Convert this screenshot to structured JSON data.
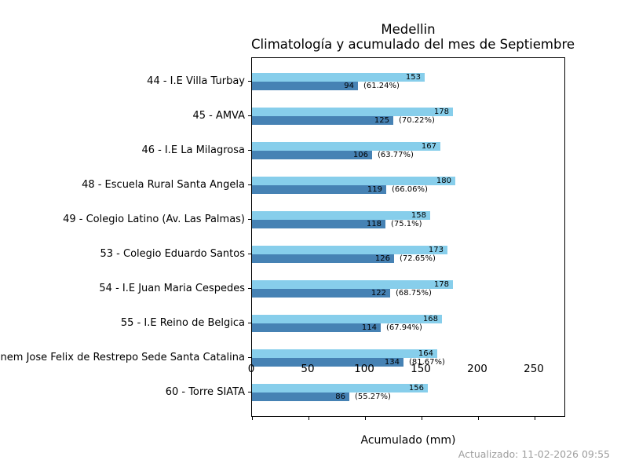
{
  "title": {
    "line1": "Medellin",
    "line2": "Climatología y acumulado del mes de Septiembre"
  },
  "footer": {
    "updated": "Actualizado: 11-02-2026 09:55"
  },
  "chart_data": {
    "type": "bar",
    "orientation": "horizontal",
    "title": "Medellin — Climatología y acumulado del mes de Septiembre",
    "xlabel": "Acumulado (mm)",
    "ylabel": "",
    "xlim": [
      0,
      278
    ],
    "x_ticks": [
      0,
      50,
      100,
      150,
      200,
      250
    ],
    "grid": false,
    "legend_position": "none",
    "categories": [
      "44 - I.E Villa Turbay",
      "45 - AMVA",
      "46 - I.E La Milagrosa",
      "48 - Escuela Rural Santa Angela",
      "49 - Colegio Latino (Av. Las Palmas)",
      "53 - Colegio Eduardo Santos",
      "54 - I.E Juan Maria Cespedes",
      "55 - I.E Reino de Belgica",
      "Inem Jose Felix de Restrepo Sede Santa Catalina",
      "60 - Torre SIATA"
    ],
    "series": [
      {
        "name": "Climatología",
        "color": "#87CEEB",
        "values": [
          153,
          178,
          167,
          180,
          158,
          173,
          178,
          168,
          164,
          156
        ]
      },
      {
        "name": "Acumulado",
        "color": "#4682B4",
        "values": [
          94,
          125,
          106,
          119,
          118,
          126,
          122,
          114,
          134,
          86
        ]
      }
    ],
    "percent_labels": [
      "(61.24%)",
      "(70.22%)",
      "(63.77%)",
      "(66.06%)",
      "(75.1%)",
      "(72.65%)",
      "(68.75%)",
      "(67.94%)",
      "(81.67%)",
      "(55.27%)"
    ]
  }
}
